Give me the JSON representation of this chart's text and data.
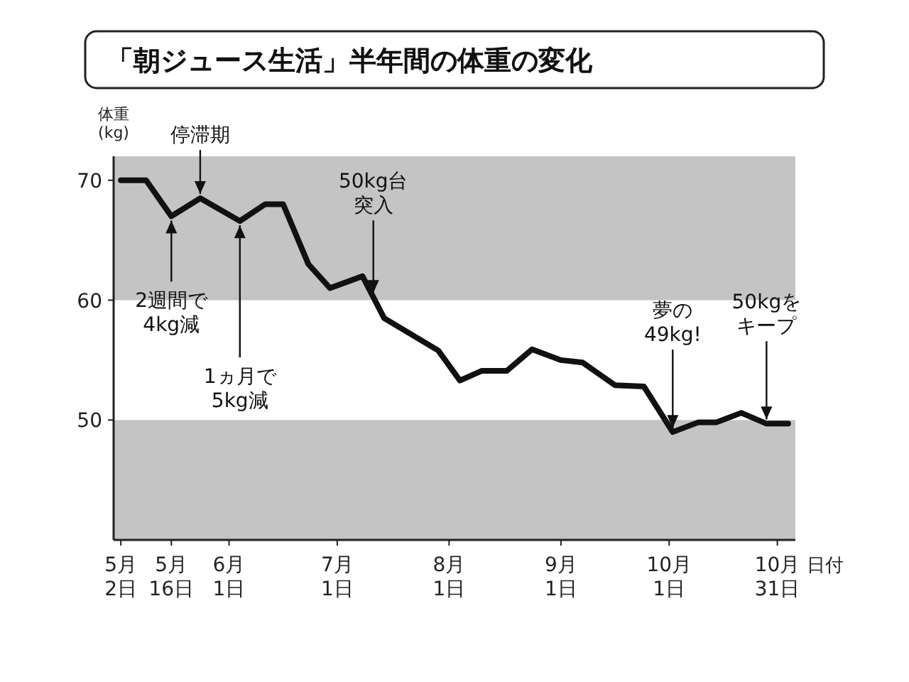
{
  "chart_data": {
    "type": "line",
    "title": "「朝ジュース生活」半年間の体重の変化",
    "ylabel": "体重\n(kg)",
    "xlabel": "日付",
    "x": [
      "--05-02",
      "--05-09",
      "--05-16",
      "--05-24",
      "--06-04",
      "--06-11",
      "--06-16",
      "--06-23",
      "--06-29",
      "--07-08",
      "--07-14",
      "--07-29",
      "--08-04",
      "--08-10",
      "--08-17",
      "--08-24",
      "--09-01",
      "--09-07",
      "--09-16",
      "--09-24",
      "--10-02",
      "--10-09",
      "--10-14",
      "--10-21",
      "--10-28",
      "--11-03"
    ],
    "series": [
      {
        "color": "#111111",
        "values": [
          70,
          70,
          67,
          68.5,
          66.6,
          68,
          68,
          63,
          61,
          62,
          58.5,
          55.8,
          53.3,
          54.1,
          54.1,
          55.9,
          55,
          54.8,
          52.9,
          52.8,
          49,
          49.8,
          49.8,
          50.6,
          49.7,
          49.7
        ]
      }
    ],
    "xlim": [
      "--04-30",
      "--11-05"
    ],
    "xticks": [
      {
        "value": "--05-02",
        "label": "5月\n2日"
      },
      {
        "value": "--05-16",
        "label": "5月\n16日"
      },
      {
        "value": "--06-01",
        "label": "6月\n1日"
      },
      {
        "value": "--07-01",
        "label": "7月\n1日"
      },
      {
        "value": "--08-01",
        "label": "8月\n1日"
      },
      {
        "value": "--09-01",
        "label": "9月\n1日"
      },
      {
        "value": "--10-01",
        "label": "10月\n1日"
      },
      {
        "value": "--10-31",
        "label": "10月\n31日"
      }
    ],
    "ylim": [
      40,
      72
    ],
    "yticks": [
      50,
      60,
      70
    ],
    "bands": [
      {
        "axis": "y",
        "from": 60,
        "to": 72,
        "color": "#c4c4c4"
      },
      {
        "axis": "y",
        "from": 40,
        "to": 50,
        "color": "#c4c4c4"
      }
    ],
    "annotations": [
      {
        "text": "停滞期",
        "x": "--05-24",
        "y": 68.5
      },
      {
        "text": "2週間で4kg減",
        "x": "--05-16",
        "y": 67
      },
      {
        "text": "1ヵ月で5kg減",
        "x": "--06-04",
        "y": 66.6
      },
      {
        "text": "50kg台突入",
        "x": "--07-11",
        "y": 60.25
      },
      {
        "text": "夢の49kg!",
        "x": "--10-02",
        "y": 49
      },
      {
        "text": "50kgをキープ",
        "x": "--10-28",
        "y": 49.7
      }
    ],
    "grid": false,
    "marker": "none",
    "line_style": "solid"
  }
}
